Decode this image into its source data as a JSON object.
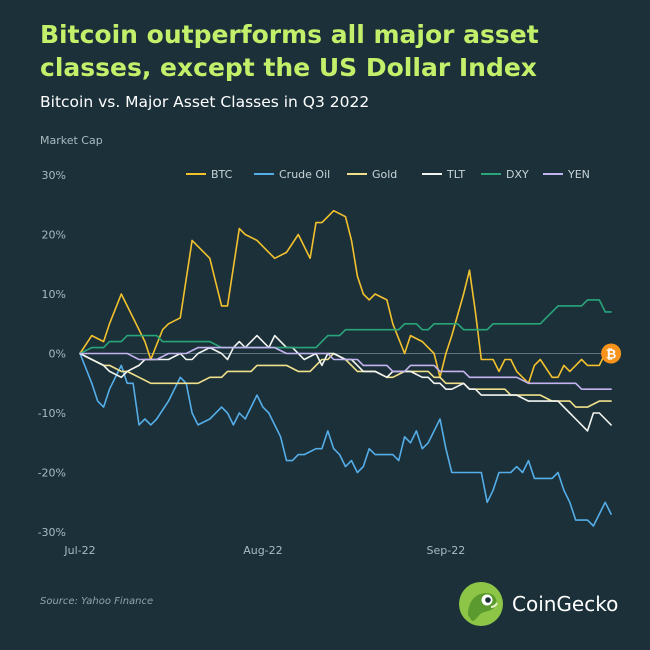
{
  "header": {
    "title": "Bitcoin outperforms all major asset classes, except the US Dollar Index",
    "subtitle": "Bitcoin vs. Major Asset Classes in Q3 2022"
  },
  "footer": {
    "source": "Source: Yahoo Finance",
    "brand": "CoinGecko"
  },
  "colors": {
    "background": "#1b3039",
    "title": "#c3f06a",
    "BTC": "#f2c12e",
    "Crude Oil": "#55aee8",
    "Gold": "#f0e08a",
    "TLT": "#f2f4f0",
    "DXY": "#2aa57a",
    "YEN": "#c3b3ef",
    "bitcoin_badge": "#f7931a"
  },
  "icons": {
    "end_marker": "bitcoin-icon",
    "logo": "coingecko-gecko-icon"
  },
  "chart_data": {
    "type": "line",
    "ylabel": "Market Cap",
    "ylim": [
      -30,
      30
    ],
    "y_ticks": [
      30,
      20,
      10,
      0,
      -10,
      -20,
      -30
    ],
    "y_tick_labels": [
      "30%",
      "20%",
      "10%",
      "0%",
      "-10%",
      "-20%",
      "-30%"
    ],
    "x_ticks": [
      0,
      31,
      62
    ],
    "x_tick_labels": [
      "Jul-22",
      "Aug-22",
      "Sep-22"
    ],
    "x_max": 91,
    "legend_position": "top",
    "grid": false,
    "series": [
      {
        "name": "BTC",
        "x": [
          0,
          2,
          4,
          5,
          7,
          8,
          11,
          12,
          14,
          15,
          17,
          19,
          20,
          22,
          24,
          25,
          27,
          28,
          30,
          32,
          33,
          35,
          37,
          39,
          40,
          41,
          42,
          43,
          45,
          46,
          47,
          48,
          49,
          50,
          52,
          53,
          55,
          56,
          58,
          59,
          60,
          61,
          62,
          63,
          65,
          66,
          67,
          68,
          70,
          71,
          72,
          73,
          74,
          76,
          77,
          78,
          80,
          81,
          82,
          83,
          84,
          85,
          86,
          88,
          89,
          90
        ],
        "y": [
          0,
          3,
          2,
          5,
          10,
          8,
          2,
          -1,
          4,
          5,
          6,
          19,
          18,
          16,
          8,
          8,
          21,
          20,
          19,
          17,
          16,
          17,
          20,
          16,
          22,
          22,
          23,
          24,
          23,
          19,
          13,
          10,
          9,
          10,
          9,
          5,
          0,
          3,
          2,
          1,
          0,
          -4,
          0,
          3,
          10,
          14,
          7,
          -1,
          -1,
          -3,
          -1,
          -1,
          -3,
          -5,
          -2,
          -1,
          -4,
          -4,
          -2,
          -3,
          -2,
          -1,
          -2,
          -2,
          0,
          0
        ]
      },
      {
        "name": "Crude Oil",
        "x": [
          0,
          2,
          3,
          4,
          5,
          7,
          8,
          9,
          10,
          11,
          12,
          13,
          15,
          17,
          18,
          19,
          20,
          22,
          24,
          25,
          26,
          27,
          28,
          30,
          31,
          32,
          33,
          34,
          35,
          36,
          37,
          38,
          40,
          41,
          42,
          43,
          44,
          45,
          46,
          47,
          48,
          49,
          50,
          51,
          52,
          53,
          54,
          55,
          56,
          57,
          58,
          59,
          61,
          62,
          63,
          64,
          66,
          67,
          68,
          69,
          70,
          71,
          72,
          73,
          74,
          75,
          76,
          77,
          78,
          79,
          80,
          81,
          82,
          83,
          84,
          85,
          86,
          87,
          88,
          89,
          90
        ],
        "y": [
          0,
          -5,
          -8,
          -9,
          -6,
          -2,
          -5,
          -5,
          -12,
          -11,
          -12,
          -11,
          -8,
          -4,
          -5,
          -10,
          -12,
          -11,
          -9,
          -10,
          -12,
          -10,
          -11,
          -7,
          -9,
          -10,
          -12,
          -14,
          -18,
          -18,
          -17,
          -17,
          -16,
          -16,
          -13,
          -16,
          -17,
          -19,
          -18,
          -20,
          -19,
          -16,
          -17,
          -17,
          -17,
          -17,
          -18,
          -14,
          -15,
          -13,
          -16,
          -15,
          -11,
          -16,
          -20,
          -20,
          -20,
          -20,
          -20,
          -25,
          -23,
          -20,
          -20,
          -20,
          -19,
          -20,
          -18,
          -21,
          -21,
          -21,
          -21,
          -20,
          -23,
          -25,
          -28,
          -28,
          -28,
          -29,
          -27,
          -25,
          -27
        ]
      },
      {
        "name": "Gold",
        "x": [
          0,
          2,
          4,
          5,
          7,
          8,
          10,
          12,
          13,
          15,
          17,
          18,
          20,
          22,
          24,
          25,
          27,
          29,
          30,
          32,
          33,
          35,
          37,
          39,
          40,
          41,
          42,
          43,
          45,
          46,
          47,
          48,
          49,
          50,
          52,
          53,
          55,
          56,
          58,
          59,
          60,
          61,
          62,
          63,
          65,
          66,
          67,
          68,
          70,
          71,
          72,
          73,
          74,
          76,
          77,
          78,
          80,
          81,
          82,
          83,
          84,
          85,
          86,
          88,
          89,
          90
        ],
        "y": [
          0,
          -1,
          -2,
          -2,
          -3,
          -3,
          -4,
          -5,
          -5,
          -5,
          -5,
          -5,
          -5,
          -4,
          -4,
          -3,
          -3,
          -3,
          -2,
          -2,
          -2,
          -2,
          -3,
          -3,
          -2,
          -1,
          -1,
          0,
          -1,
          -2,
          -3,
          -3,
          -3,
          -3,
          -4,
          -4,
          -3,
          -3,
          -3,
          -3,
          -4,
          -4,
          -5,
          -5,
          -5,
          -6,
          -6,
          -6,
          -6,
          -6,
          -6,
          -7,
          -7,
          -7,
          -7,
          -7,
          -8,
          -8,
          -8,
          -8,
          -9,
          -9,
          -9,
          -8,
          -8,
          -8
        ]
      },
      {
        "name": "TLT",
        "x": [
          0,
          2,
          4,
          5,
          7,
          8,
          10,
          11,
          12,
          14,
          15,
          17,
          18,
          19,
          20,
          22,
          24,
          25,
          26,
          27,
          28,
          29,
          30,
          31,
          32,
          33,
          34,
          35,
          36,
          37,
          38,
          40,
          41,
          42,
          43,
          45,
          46,
          47,
          48,
          50,
          52,
          53,
          55,
          56,
          58,
          59,
          60,
          61,
          62,
          63,
          65,
          66,
          67,
          68,
          70,
          71,
          72,
          73,
          74,
          76,
          77,
          78,
          80,
          81,
          82,
          83,
          84,
          85,
          86,
          87,
          88,
          89,
          90
        ],
        "y": [
          0,
          -1,
          -2,
          -3,
          -4,
          -3,
          -2,
          -1,
          -1,
          -1,
          -1,
          0,
          -1,
          -1,
          0,
          1,
          0,
          -1,
          1,
          2,
          1,
          2,
          3,
          2,
          1,
          3,
          2,
          1,
          1,
          0,
          -1,
          0,
          -2,
          0,
          0,
          -1,
          -1,
          -2,
          -3,
          -3,
          -4,
          -3,
          -3,
          -3,
          -4,
          -4,
          -5,
          -5,
          -6,
          -6,
          -5,
          -6,
          -6,
          -7,
          -7,
          -7,
          -7,
          -7,
          -7,
          -8,
          -8,
          -8,
          -8,
          -8,
          -9,
          -10,
          -11,
          -12,
          -13,
          -10,
          -10,
          -11,
          -12
        ]
      },
      {
        "name": "DXY",
        "x": [
          0,
          2,
          3,
          4,
          5,
          6,
          7,
          8,
          10,
          12,
          13,
          14,
          15,
          16,
          17,
          18,
          20,
          22,
          24,
          25,
          26,
          27,
          28,
          30,
          32,
          33,
          34,
          35,
          36,
          37,
          38,
          40,
          41,
          42,
          43,
          44,
          45,
          46,
          48,
          49,
          50,
          51,
          52,
          53,
          54,
          55,
          56,
          57,
          58,
          59,
          60,
          61,
          62,
          63,
          64,
          65,
          66,
          67,
          68,
          69,
          70,
          71,
          72,
          73,
          74,
          75,
          76,
          77,
          78,
          79,
          80,
          81,
          82,
          83,
          84,
          85,
          86,
          87,
          88,
          89,
          90
        ],
        "y": [
          0,
          1,
          1,
          1,
          2,
          2,
          2,
          3,
          3,
          3,
          3,
          2,
          2,
          2,
          2,
          2,
          2,
          2,
          1,
          1,
          1,
          1,
          1,
          1,
          1,
          1,
          1,
          1,
          1,
          1,
          1,
          1,
          2,
          3,
          3,
          3,
          4,
          4,
          4,
          4,
          4,
          4,
          4,
          4,
          4,
          5,
          5,
          5,
          4,
          4,
          5,
          5,
          5,
          5,
          5,
          4,
          4,
          4,
          4,
          4,
          5,
          5,
          5,
          5,
          5,
          5,
          5,
          5,
          5,
          6,
          7,
          8,
          8,
          8,
          8,
          8,
          9,
          9,
          9,
          7,
          7
        ]
      },
      {
        "name": "YEN",
        "x": [
          0,
          2,
          4,
          5,
          7,
          8,
          10,
          12,
          13,
          15,
          17,
          18,
          20,
          22,
          24,
          25,
          27,
          29,
          30,
          32,
          33,
          35,
          37,
          39,
          40,
          41,
          42,
          43,
          45,
          46,
          47,
          48,
          49,
          50,
          52,
          53,
          55,
          56,
          58,
          59,
          60,
          61,
          62,
          63,
          65,
          66,
          67,
          68,
          70,
          71,
          72,
          73,
          74,
          76,
          77,
          78,
          80,
          81,
          82,
          83,
          84,
          85,
          86,
          88,
          89,
          90
        ],
        "y": [
          0,
          0,
          0,
          0,
          0,
          0,
          -1,
          -1,
          -1,
          0,
          0,
          0,
          1,
          1,
          1,
          1,
          1,
          1,
          1,
          1,
          1,
          0,
          0,
          0,
          0,
          0,
          0,
          -1,
          -1,
          -1,
          -1,
          -2,
          -2,
          -2,
          -2,
          -3,
          -3,
          -2,
          -2,
          -2,
          -2,
          -3,
          -3,
          -3,
          -3,
          -4,
          -4,
          -4,
          -4,
          -4,
          -4,
          -4,
          -4,
          -5,
          -5,
          -5,
          -5,
          -5,
          -5,
          -5,
          -5,
          -6,
          -6,
          -6,
          -6,
          -6
        ]
      }
    ]
  }
}
